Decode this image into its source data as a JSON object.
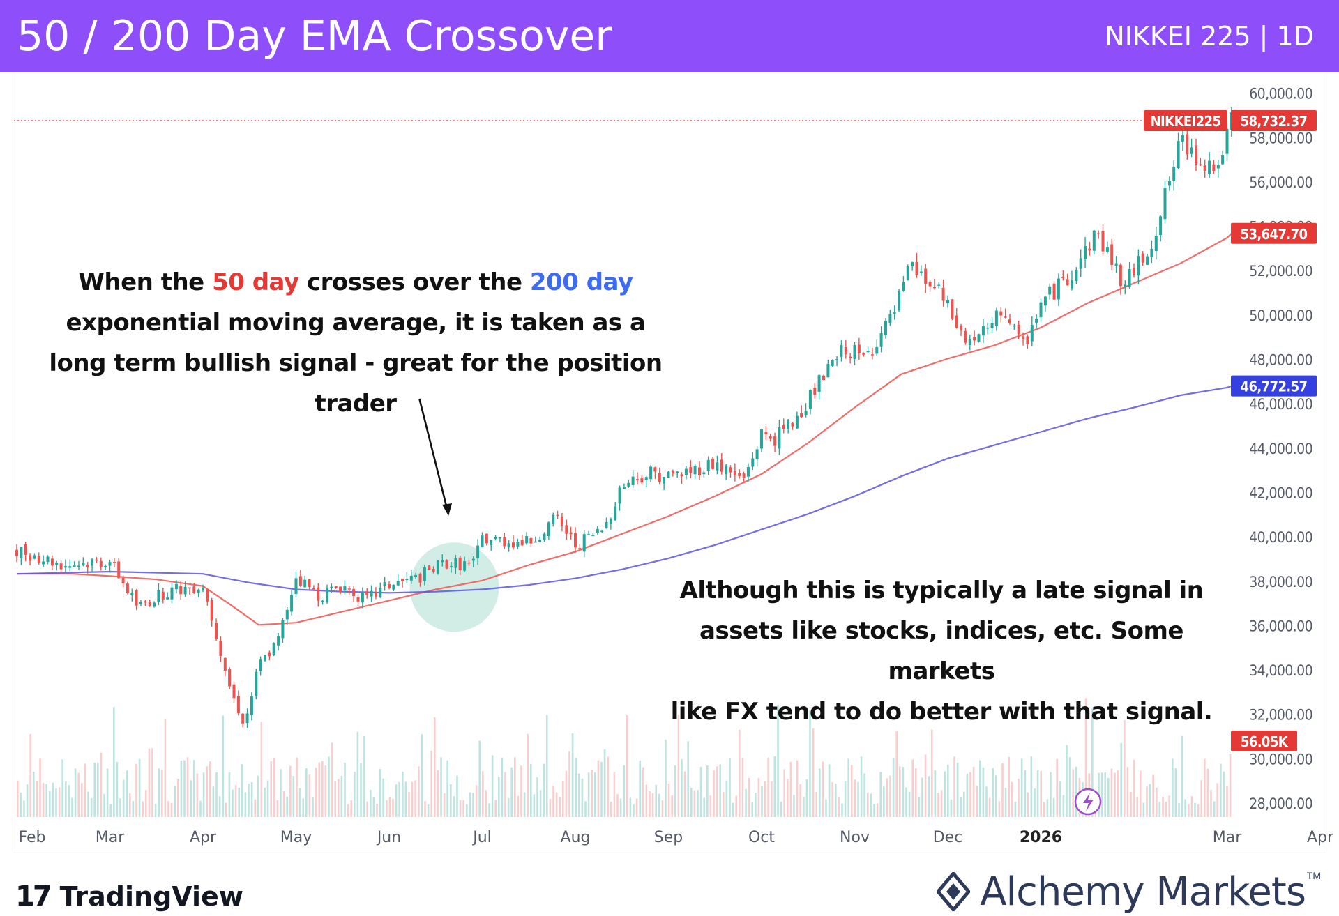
{
  "header": {
    "title": "50 / 200 Day EMA Crossover",
    "symbol": "NIKKEI 225 | 1D",
    "background": "#8e4ffa"
  },
  "annotations": {
    "top": {
      "line1_prefix": "When the ",
      "line1_red": "50 day",
      "line1_middle": " crosses over the ",
      "line1_blue": "200 day",
      "line2": "exponential moving average, it is taken as a",
      "line3": "long term bullish signal - great for the position trader"
    },
    "bottom": {
      "line1": "Although this is typically a late signal in",
      "line2": "assets like stocks, indices, etc. Some markets",
      "line3": "like FX tend to do better with that signal."
    }
  },
  "logos": {
    "tradingview": "TradingView",
    "tradingview_mark": "17",
    "alchemy": "Alchemy Markets",
    "alchemy_tm": "TM"
  },
  "chart_data": {
    "type": "line",
    "title": "50 / 200 Day EMA Crossover",
    "symbol": "NIKKEI225",
    "interval": "1D",
    "y_axis": {
      "position": "right",
      "ylim": [
        27000,
        60500
      ],
      "ticks": [
        28000,
        30000,
        32000,
        34000,
        36000,
        38000,
        40000,
        42000,
        44000,
        46000,
        48000,
        50000,
        52000,
        54000,
        56000,
        58000,
        60000
      ],
      "tick_labels": [
        "28,000.00",
        "30,000.00",
        "32,000.00",
        "34,000.00",
        "36,000.00",
        "38,000.00",
        "40,000.00",
        "42,000.00",
        "44,000.00",
        "46,000.00",
        "48,000.00",
        "50,000.00",
        "52,000.00",
        "54,000.00",
        "56,000.00",
        "58,000.00",
        "60,000.00"
      ]
    },
    "x_axis": {
      "tick_labels": [
        "Feb",
        "Mar",
        "Apr",
        "May",
        "Jun",
        "Jul",
        "Aug",
        "Sep",
        "Oct",
        "Nov",
        "Dec",
        "2026",
        "Mar",
        "Apr"
      ],
      "tick_month_index": [
        0,
        1,
        2,
        3,
        4,
        5,
        6,
        7,
        8,
        9,
        10,
        11,
        13,
        14
      ],
      "xlim_months": [
        0,
        14.2
      ]
    },
    "price_series": {
      "name": "NIKKEI225",
      "color_up": "#26a69a",
      "color_down": "#ef5350",
      "x_months": [
        0,
        0.5,
        1.0,
        1.3,
        1.6,
        2.0,
        2.15,
        2.3,
        2.45,
        2.6,
        2.8,
        3.0,
        3.25,
        3.5,
        3.75,
        4.0,
        4.3,
        4.6,
        4.9,
        5.0,
        5.2,
        5.5,
        5.8,
        6.0,
        6.3,
        6.5,
        6.8,
        7.0,
        7.2,
        7.5,
        7.8,
        8.0,
        8.15,
        8.35,
        8.6,
        8.9,
        9.1,
        9.4,
        9.6,
        9.9,
        10.2,
        10.45,
        10.6,
        10.8,
        11.0,
        11.3,
        11.6,
        11.9,
        12.2,
        12.5,
        12.7,
        12.9,
        13.05
      ],
      "close": [
        39400,
        38700,
        38900,
        36800,
        37500,
        37800,
        35500,
        33000,
        31500,
        34200,
        35200,
        38200,
        37300,
        37800,
        37100,
        37800,
        38100,
        38800,
        38700,
        39900,
        39800,
        39700,
        40800,
        39600,
        40300,
        42300,
        42900,
        42700,
        42900,
        43300,
        42500,
        44600,
        44400,
        45200,
        46800,
        48500,
        48000,
        49800,
        52100,
        51000,
        48700,
        49300,
        50300,
        48400,
        50500,
        51700,
        53700,
        51300,
        53300,
        57800,
        57000,
        56600,
        58732.37
      ],
      "last_price": 58732.37,
      "last_label": "58,732.37"
    },
    "series": [
      {
        "name": "EMA 50",
        "color": "#ef5350",
        "last_label": "53,647.70",
        "x_months": [
          0,
          0.6,
          1.0,
          1.5,
          2.0,
          2.3,
          2.6,
          3.0,
          3.5,
          4.0,
          4.5,
          5.0,
          5.5,
          6.0,
          6.5,
          7.0,
          7.5,
          8.0,
          8.5,
          9.0,
          9.5,
          10.0,
          10.5,
          11.0,
          11.5,
          12.0,
          12.5,
          13.0,
          13.05
        ],
        "values": [
          38300,
          38300,
          38200,
          38050,
          37750,
          36900,
          36000,
          36100,
          36600,
          37100,
          37600,
          38000,
          38700,
          39300,
          40100,
          40900,
          41800,
          42800,
          44200,
          45800,
          47300,
          48000,
          48600,
          49400,
          50500,
          51400,
          52300,
          53450,
          53647.7
        ]
      },
      {
        "name": "EMA 200",
        "color": "#5a55e0",
        "last_label": "46,772.57",
        "x_months": [
          0,
          1.0,
          2.0,
          2.5,
          3.0,
          3.5,
          4.0,
          4.5,
          5.0,
          5.5,
          6.0,
          6.5,
          7.0,
          7.5,
          8.0,
          8.5,
          9.0,
          9.5,
          10.0,
          10.5,
          11.0,
          11.5,
          12.0,
          12.5,
          13.0,
          13.05
        ],
        "values": [
          38300,
          38400,
          38300,
          37900,
          37600,
          37500,
          37450,
          37500,
          37600,
          37800,
          38100,
          38500,
          39000,
          39600,
          40300,
          41000,
          41800,
          42700,
          43500,
          44100,
          44700,
          45300,
          45800,
          46350,
          46700,
          46772.57
        ]
      }
    ],
    "volume": {
      "last_label": "56.05K"
    },
    "crossover_highlight": {
      "x_month": 4.7,
      "y": 37700
    },
    "arrow": {
      "from": {
        "x_month": 4.25,
        "y": 47200
      },
      "to": {
        "x_month": 4.6,
        "y": 40500
      }
    },
    "price_labels": {
      "symbol_tag": "NIKKEI225"
    }
  }
}
